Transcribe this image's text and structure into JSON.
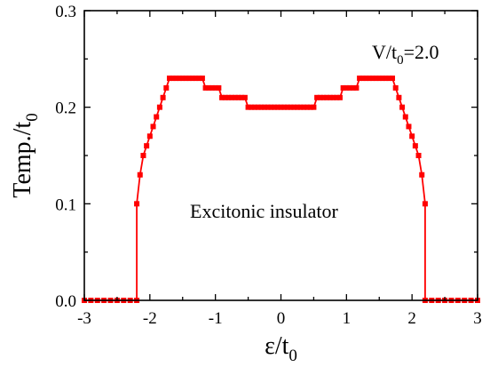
{
  "chart_data": {
    "type": "line",
    "xlabel": "ε/t",
    "xlabel_sub": "0",
    "ylabel": "Temp./t",
    "ylabel_sub": "0",
    "xlim": [
      -3,
      3
    ],
    "ylim": [
      0,
      0.3
    ],
    "x_ticks": [
      -3,
      -2,
      -1,
      0,
      1,
      2,
      3
    ],
    "x_tick_labels": [
      "-3",
      "-2",
      "-1",
      "0",
      "1",
      "2",
      "3"
    ],
    "y_ticks": [
      0.0,
      0.1,
      0.2,
      0.3
    ],
    "y_tick_labels": [
      "0.0",
      "0.1",
      "0.2",
      "0.3"
    ],
    "grid": false,
    "annotations": [
      {
        "text": "V/t",
        "sub": "0",
        "suffix": "=2.0",
        "role": "parameter"
      },
      {
        "text": "Excitonic insulator",
        "role": "region-label"
      }
    ],
    "series": [
      {
        "color": "#ff0000",
        "marker": "square",
        "x": [
          -3.0,
          -2.9,
          -2.8,
          -2.7,
          -2.6,
          -2.5,
          -2.4,
          -2.3,
          -2.2,
          -2.2,
          -2.15,
          -2.1,
          -2.05,
          -2.0,
          -1.95,
          -1.9,
          -1.85,
          -1.8,
          -1.75,
          -1.7,
          -1.65,
          -1.6,
          -1.55,
          -1.5,
          -1.45,
          -1.4,
          -1.35,
          -1.3,
          -1.25,
          -1.2,
          -1.15,
          -1.1,
          -1.05,
          -1.0,
          -0.95,
          -0.9,
          -0.85,
          -0.8,
          -0.75,
          -0.7,
          -0.65,
          -0.6,
          -0.55,
          -0.5,
          -0.45,
          -0.4,
          -0.35,
          -0.3,
          -0.25,
          -0.2,
          -0.15,
          -0.1,
          -0.05,
          0.0,
          0.05,
          0.1,
          0.15,
          0.2,
          0.25,
          0.3,
          0.35,
          0.4,
          0.45,
          0.5,
          0.55,
          0.6,
          0.65,
          0.7,
          0.75,
          0.8,
          0.85,
          0.9,
          0.95,
          1.0,
          1.05,
          1.1,
          1.15,
          1.2,
          1.25,
          1.3,
          1.35,
          1.4,
          1.45,
          1.5,
          1.55,
          1.6,
          1.65,
          1.7,
          1.75,
          1.8,
          1.85,
          1.9,
          1.95,
          2.0,
          2.05,
          2.1,
          2.15,
          2.2,
          2.2,
          2.3,
          2.4,
          2.5,
          2.6,
          2.7,
          2.8,
          2.9,
          3.0
        ],
        "y": [
          0.0,
          0.0,
          0.0,
          0.0,
          0.0,
          0.0,
          0.0,
          0.0,
          0.0,
          0.1,
          0.13,
          0.15,
          0.16,
          0.17,
          0.18,
          0.19,
          0.2,
          0.21,
          0.22,
          0.23,
          0.23,
          0.23,
          0.23,
          0.23,
          0.23,
          0.23,
          0.23,
          0.23,
          0.23,
          0.23,
          0.22,
          0.22,
          0.22,
          0.22,
          0.22,
          0.21,
          0.21,
          0.21,
          0.21,
          0.21,
          0.21,
          0.21,
          0.21,
          0.2,
          0.2,
          0.2,
          0.2,
          0.2,
          0.2,
          0.2,
          0.2,
          0.2,
          0.2,
          0.2,
          0.2,
          0.2,
          0.2,
          0.2,
          0.2,
          0.2,
          0.2,
          0.2,
          0.2,
          0.2,
          0.21,
          0.21,
          0.21,
          0.21,
          0.21,
          0.21,
          0.21,
          0.21,
          0.22,
          0.22,
          0.22,
          0.22,
          0.22,
          0.23,
          0.23,
          0.23,
          0.23,
          0.23,
          0.23,
          0.23,
          0.23,
          0.23,
          0.23,
          0.23,
          0.22,
          0.21,
          0.2,
          0.19,
          0.18,
          0.17,
          0.16,
          0.15,
          0.13,
          0.1,
          0.0,
          0.0,
          0.0,
          0.0,
          0.0,
          0.0,
          0.0,
          0.0,
          0.0
        ]
      }
    ]
  }
}
